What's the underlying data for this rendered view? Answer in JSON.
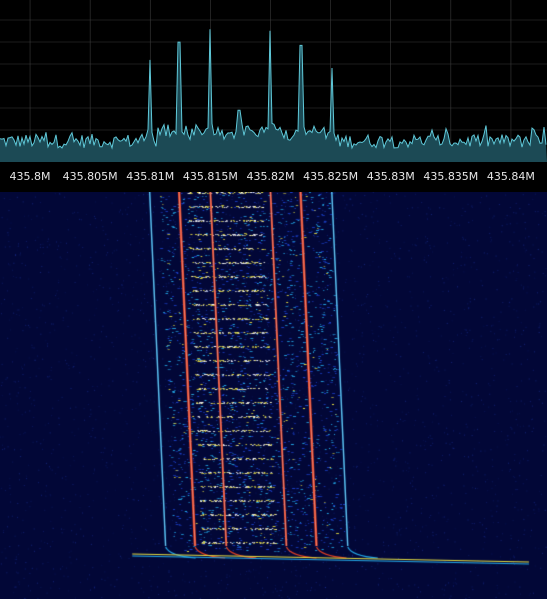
{
  "frequency_axis": {
    "unit": "Hz",
    "range": [
      435797500,
      435843000
    ],
    "ticks": [
      {
        "value": 435800000,
        "label": "435.8M"
      },
      {
        "value": 435805000,
        "label": "435.805M"
      },
      {
        "value": 435810000,
        "label": "435.81M"
      },
      {
        "value": 435815000,
        "label": "435.815M"
      },
      {
        "value": 435820000,
        "label": "435.82M"
      },
      {
        "value": 435825000,
        "label": "435.825M"
      },
      {
        "value": 435830000,
        "label": "435.83M"
      },
      {
        "value": 435835000,
        "label": "435.835M"
      },
      {
        "value": 435840000,
        "label": "435.84M"
      }
    ]
  },
  "spectrum": {
    "line_color": "#5fc8d8",
    "fill_color": "#1c4a55",
    "grid_color": "#3a3a3a",
    "peaks": [
      {
        "freq": 435809950,
        "level": 0.63
      },
      {
        "freq": 435812400,
        "level": 0.74
      },
      {
        "freq": 435815000,
        "level": 0.82
      },
      {
        "freq": 435817400,
        "level": 0.32
      },
      {
        "freq": 435820000,
        "level": 0.81
      },
      {
        "freq": 435822500,
        "level": 0.72
      },
      {
        "freq": 435825100,
        "level": 0.58
      }
    ]
  },
  "waterfall": {
    "background_color": "#020737",
    "signal_colors": [
      "#1a3fc8",
      "#22a8e8",
      "#e8e040",
      "#e84020",
      "#ffffff"
    ]
  }
}
